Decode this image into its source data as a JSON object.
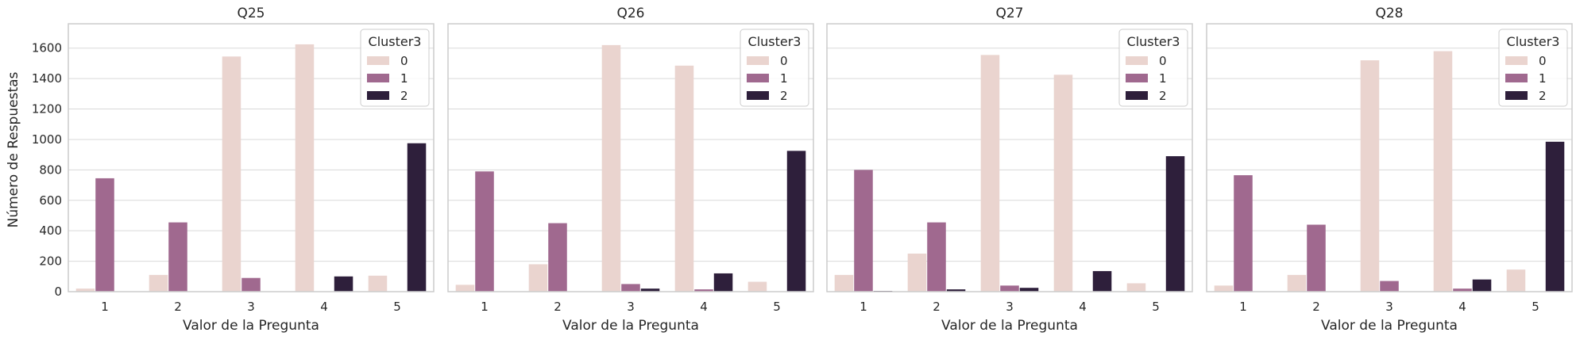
{
  "chart_data": [
    {
      "type": "bar",
      "title": "Q25",
      "xlabel": "Valor de la Pregunta",
      "ylabel": "Número de Respuestas",
      "categories": [
        "1",
        "2",
        "3",
        "4",
        "5"
      ],
      "ylim": [
        0,
        1760
      ],
      "yticks": [
        0,
        200,
        400,
        600,
        800,
        1000,
        1200,
        1400,
        1600
      ],
      "grid": true,
      "legend": {
        "title": "Cluster3",
        "position": "top-right"
      },
      "series": [
        {
          "name": "0",
          "color": "#ead4cf",
          "values": [
            20,
            110,
            1545,
            1625,
            105
          ]
        },
        {
          "name": "1",
          "color": "#a0698f",
          "values": [
            745,
            455,
            90,
            0,
            0
          ]
        },
        {
          "name": "2",
          "color": "#2e1f3b",
          "values": [
            0,
            0,
            0,
            100,
            975
          ]
        }
      ]
    },
    {
      "type": "bar",
      "title": "Q26",
      "xlabel": "Valor de la Pregunta",
      "categories": [
        "1",
        "2",
        "3",
        "4",
        "5"
      ],
      "ylim": [
        0,
        1760
      ],
      "grid": true,
      "legend": {
        "title": "Cluster3",
        "position": "top-right"
      },
      "series": [
        {
          "name": "0",
          "color": "#ead4cf",
          "values": [
            45,
            180,
            1620,
            1485,
            65
          ]
        },
        {
          "name": "1",
          "color": "#a0698f",
          "values": [
            790,
            450,
            50,
            15,
            0
          ]
        },
        {
          "name": "2",
          "color": "#2e1f3b",
          "values": [
            0,
            0,
            20,
            120,
            925
          ]
        }
      ]
    },
    {
      "type": "bar",
      "title": "Q27",
      "xlabel": "Valor de la Pregunta",
      "categories": [
        "1",
        "2",
        "3",
        "4",
        "5"
      ],
      "ylim": [
        0,
        1760
      ],
      "grid": true,
      "legend": {
        "title": "Cluster3",
        "position": "top-right"
      },
      "series": [
        {
          "name": "0",
          "color": "#ead4cf",
          "values": [
            110,
            250,
            1555,
            1425,
            55
          ]
        },
        {
          "name": "1",
          "color": "#a0698f",
          "values": [
            800,
            455,
            40,
            0,
            0
          ]
        },
        {
          "name": "2",
          "color": "#2e1f3b",
          "values": [
            5,
            15,
            25,
            135,
            890
          ]
        }
      ]
    },
    {
      "type": "bar",
      "title": "Q28",
      "xlabel": "Valor de la Pregunta",
      "categories": [
        "1",
        "2",
        "3",
        "4",
        "5"
      ],
      "ylim": [
        0,
        1760
      ],
      "grid": true,
      "legend": {
        "title": "Cluster3",
        "position": "top-right"
      },
      "series": [
        {
          "name": "0",
          "color": "#ead4cf",
          "values": [
            40,
            110,
            1520,
            1580,
            145
          ]
        },
        {
          "name": "1",
          "color": "#a0698f",
          "values": [
            765,
            440,
            70,
            20,
            0
          ]
        },
        {
          "name": "2",
          "color": "#2e1f3b",
          "values": [
            0,
            0,
            0,
            80,
            985
          ]
        }
      ]
    }
  ]
}
